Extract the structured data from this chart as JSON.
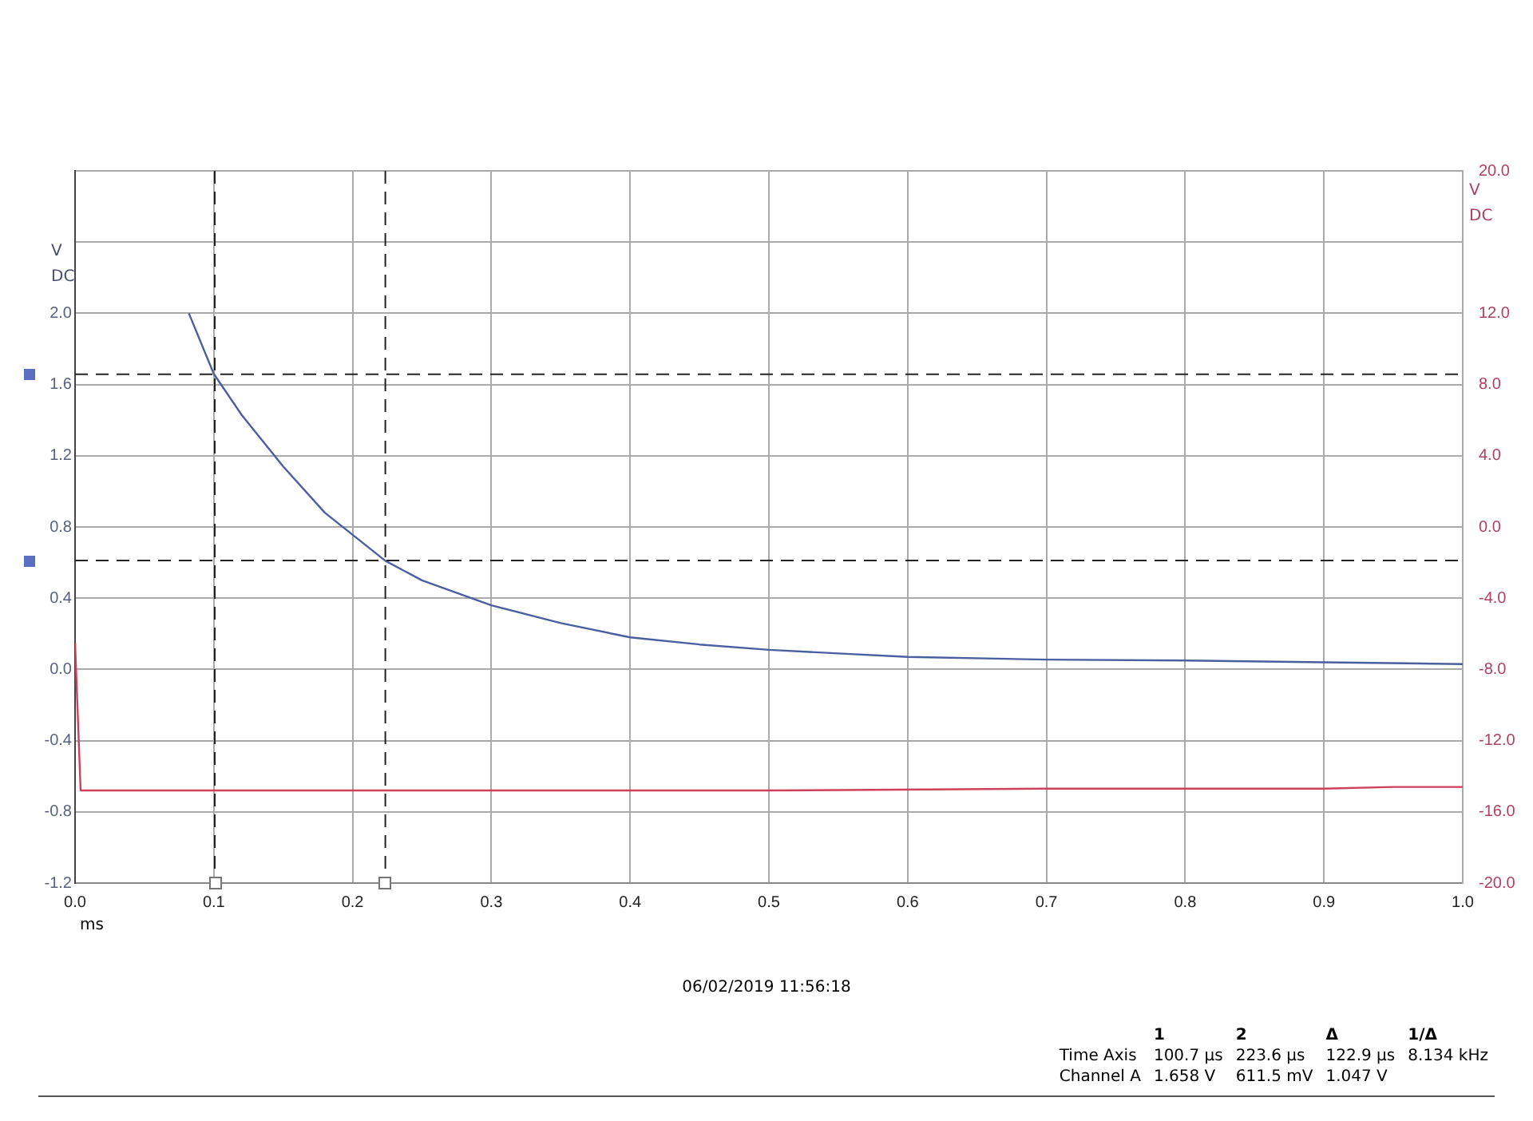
{
  "chart_data": {
    "type": "line",
    "xlabel": "ms",
    "ylabel": "V DC",
    "y2label": "V DC",
    "xlim": [
      0,
      1
    ],
    "xticks": [
      {
        "value": 0,
        "label": "0.0"
      },
      0.1,
      0.2,
      0.3,
      0.4,
      0.5,
      0.6,
      0.7,
      0.8,
      0.9,
      {
        "value": 1,
        "label": "1.0"
      }
    ],
    "ylim": [
      -1.2,
      2.8
    ],
    "yticks": [
      {
        "value": -1.2,
        "label": "-1.2"
      },
      {
        "value": -0.8,
        "label": "-0.8"
      },
      {
        "value": -0.4,
        "label": "-0.4"
      },
      {
        "value": 0,
        "label": "0.0"
      },
      0.4,
      0.8,
      1.2,
      1.6,
      {
        "value": 2,
        "label": "2.0"
      },
      {
        "value": 2.4,
        "label": null
      },
      {
        "value": 2.8,
        "label": null
      }
    ],
    "y2lim": [
      -20,
      20
    ],
    "y2ticks": [
      {
        "value": -20,
        "label": "-20.0"
      },
      {
        "value": -16,
        "label": "-16.0"
      },
      {
        "value": -12,
        "label": "-12.0"
      },
      {
        "value": -8,
        "label": "-8.0"
      },
      {
        "value": -4,
        "label": "-4.0"
      },
      {
        "value": 0,
        "label": "0.0"
      },
      {
        "value": 4,
        "label": "4.0"
      },
      {
        "value": 8,
        "label": "8.0"
      },
      {
        "value": 12,
        "label": "12.0"
      },
      {
        "value": 16,
        "label": null
      },
      {
        "value": 20,
        "label": "20.0"
      }
    ],
    "grid": true,
    "line_style": "solid",
    "marker": "none",
    "series": [
      {
        "color": "#4a5fa0",
        "x": [
          0.082,
          0.1,
          0.12,
          0.15,
          0.18,
          0.2236,
          0.25,
          0.3,
          0.35,
          0.4,
          0.45,
          0.5,
          0.55,
          0.6,
          0.7,
          0.8,
          0.9,
          1.0
        ],
        "values": [
          2.0,
          1.66,
          1.43,
          1.14,
          0.88,
          0.61,
          0.5,
          0.36,
          0.26,
          0.18,
          0.14,
          0.11,
          0.09,
          0.07,
          0.055,
          0.05,
          0.04,
          0.03
        ]
      },
      {
        "color": "#d0405a",
        "axis": "y2",
        "x": [
          0.0,
          0.004,
          0.1,
          0.3,
          0.5,
          0.7,
          0.8,
          0.9,
          0.95,
          1.0
        ],
        "values": [
          -6.5,
          -14.8,
          -14.8,
          -14.8,
          -14.8,
          -14.7,
          -14.7,
          -14.7,
          -14.6,
          -14.6
        ]
      }
    ],
    "ref_lines": [
      {
        "axis": "x",
        "value": 0.1007,
        "color": "#222222",
        "line_style": "dashed"
      },
      {
        "axis": "x",
        "value": 0.2236,
        "color": "#222222",
        "line_style": "dashed"
      },
      {
        "axis": "y",
        "value": 1.658,
        "color": "#222222",
        "line_style": "dashed"
      },
      {
        "axis": "y",
        "value": 0.6115,
        "color": "#222222",
        "line_style": "dashed"
      }
    ],
    "annotations": [
      "06/02/2019 11:56:18",
      "\t1\t2\tΔ\t1/Δ",
      "Time Axis\t100.7 µs\t223.6 µs\t122.9 µs\t8.134 kHz",
      "Channel A\t1.658 V\t611.5 mV\t1.047 V"
    ]
  }
}
